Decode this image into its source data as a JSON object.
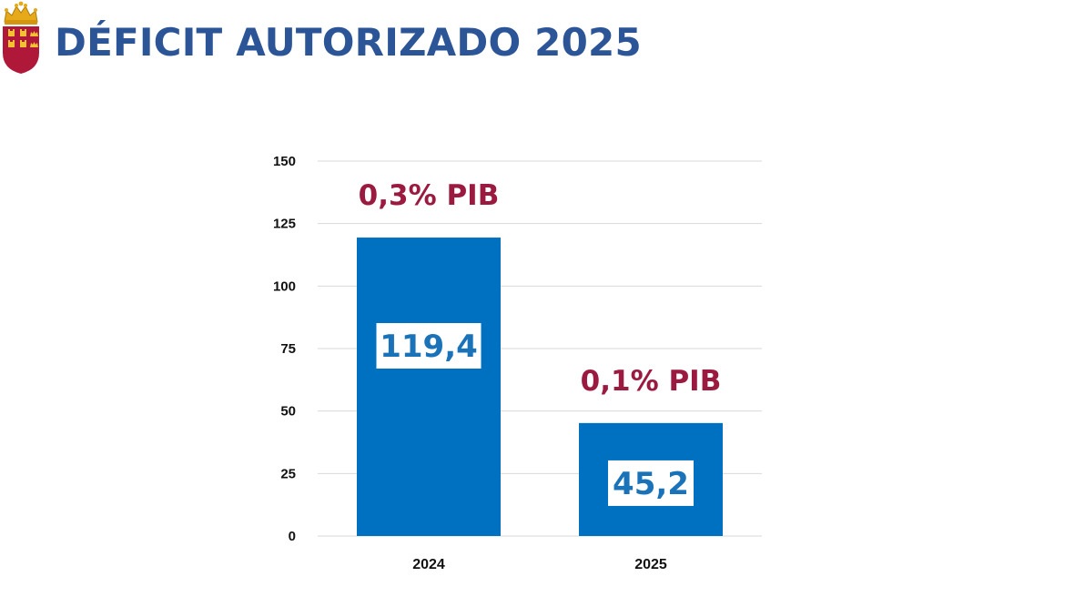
{
  "header": {
    "title": "DÉFICIT AUTORIZADO 2025",
    "logo_icon": "murcia-coat-of-arms-icon"
  },
  "colors": {
    "title": "#2b5597",
    "bar": "#0070c0",
    "annotation": "#9b1a3f",
    "value_text": "#1a73b8",
    "value_box": "#ffffff",
    "grid": "#d9d9d9",
    "shield": "#b0183a",
    "crown": "#e5a91a"
  },
  "chart_data": {
    "type": "bar",
    "categories": [
      "2024",
      "2025"
    ],
    "values": [
      119.4,
      45.2
    ],
    "value_labels": [
      "119,4",
      "45,2"
    ],
    "annotations": [
      "0,3% PIB",
      "0,1% PIB"
    ],
    "title": "",
    "xlabel": "",
    "ylabel": "",
    "ylim": [
      0,
      150
    ],
    "yticks": [
      0,
      25,
      50,
      75,
      100,
      125,
      150
    ],
    "grid": true,
    "legend": "none"
  }
}
